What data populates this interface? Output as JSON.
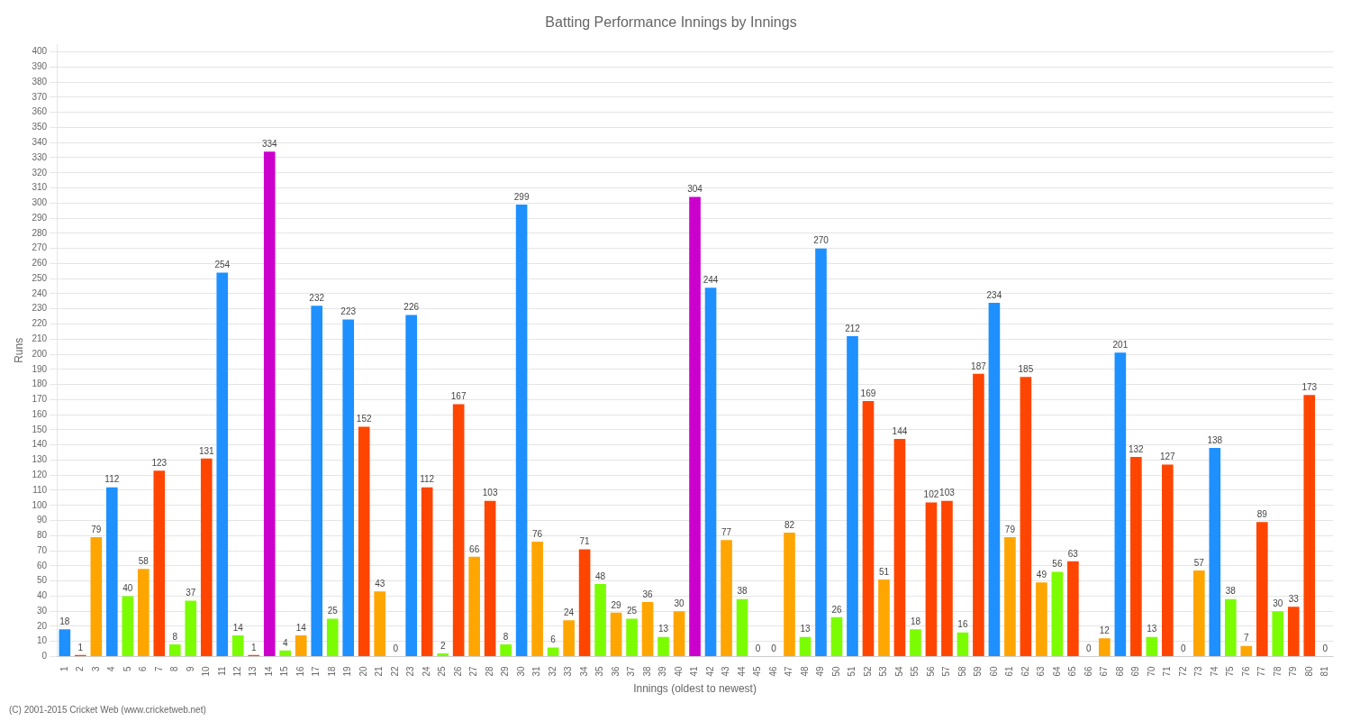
{
  "chart_data": {
    "type": "bar",
    "title": "Batting Performance Innings by Innings",
    "xlabel": "Innings (oldest to newest)",
    "ylabel": "Runs",
    "annotations": [
      "(C) 2001-2015 Cricket Web (www.cricketweb.net)"
    ],
    "categories": [
      "1",
      "2",
      "3",
      "4",
      "5",
      "6",
      "7",
      "8",
      "9",
      "10",
      "11",
      "12",
      "13",
      "14",
      "15",
      "16",
      "17",
      "18",
      "19",
      "20",
      "21",
      "22",
      "23",
      "24",
      "25",
      "26",
      "27",
      "28",
      "29",
      "30",
      "31",
      "32",
      "33",
      "34",
      "35",
      "36",
      "37",
      "38",
      "39",
      "40",
      "41",
      "42",
      "43",
      "44",
      "45",
      "46",
      "47",
      "48",
      "49",
      "50",
      "51",
      "52",
      "53",
      "54",
      "55",
      "56",
      "57",
      "58",
      "59",
      "60",
      "61",
      "62",
      "63",
      "64",
      "65",
      "66",
      "67",
      "68",
      "69",
      "70",
      "71",
      "72",
      "73",
      "74",
      "75",
      "76",
      "77",
      "78",
      "79",
      "80",
      "81"
    ],
    "values": [
      18,
      1,
      79,
      112,
      40,
      58,
      123,
      8,
      37,
      131,
      254,
      14,
      1,
      334,
      4,
      14,
      232,
      25,
      223,
      152,
      43,
      0,
      226,
      112,
      2,
      167,
      66,
      103,
      8,
      299,
      76,
      6,
      24,
      71,
      48,
      29,
      25,
      36,
      13,
      30,
      304,
      244,
      77,
      38,
      0,
      0,
      82,
      13,
      270,
      26,
      212,
      169,
      51,
      144,
      18,
      102,
      103,
      16,
      187,
      234,
      79,
      185,
      49,
      56,
      63,
      0,
      12,
      201,
      132,
      13,
      127,
      0,
      57,
      138,
      38,
      7,
      89,
      30,
      33,
      173,
      0
    ],
    "colors": [
      "#1e90ff",
      "#ff4500",
      "#ffa500",
      "#1e90ff",
      "#7cfc00",
      "#ffa500",
      "#ff4500",
      "#7cfc00",
      "#7cfc00",
      "#ff4500",
      "#1e90ff",
      "#7cfc00",
      "#ff4500",
      "#cc00cc",
      "#7cfc00",
      "#ffa500",
      "#1e90ff",
      "#7cfc00",
      "#1e90ff",
      "#ff4500",
      "#ffa500",
      "#7cfc00",
      "#1e90ff",
      "#ff4500",
      "#7cfc00",
      "#ff4500",
      "#ffa500",
      "#ff4500",
      "#7cfc00",
      "#1e90ff",
      "#ffa500",
      "#7cfc00",
      "#ffa500",
      "#ff4500",
      "#7cfc00",
      "#ffa500",
      "#7cfc00",
      "#ffa500",
      "#7cfc00",
      "#ffa500",
      "#cc00cc",
      "#1e90ff",
      "#ffa500",
      "#7cfc00",
      "#ffa500",
      "#7cfc00",
      "#ffa500",
      "#7cfc00",
      "#1e90ff",
      "#7cfc00",
      "#1e90ff",
      "#ff4500",
      "#ffa500",
      "#ff4500",
      "#7cfc00",
      "#ff4500",
      "#ff4500",
      "#7cfc00",
      "#ff4500",
      "#1e90ff",
      "#ffa500",
      "#ff4500",
      "#ffa500",
      "#7cfc00",
      "#ff4500",
      "#7cfc00",
      "#ffa500",
      "#1e90ff",
      "#ff4500",
      "#7cfc00",
      "#ff4500",
      "#ffa500",
      "#ffa500",
      "#1e90ff",
      "#7cfc00",
      "#ffa500",
      "#ff4500",
      "#7cfc00",
      "#ff4500",
      "#ff4500",
      "#7cfc00"
    ],
    "ylim": [
      0,
      405
    ],
    "yticks": [
      0,
      10,
      20,
      30,
      40,
      50,
      60,
      70,
      80,
      90,
      100,
      110,
      120,
      130,
      140,
      150,
      160,
      170,
      180,
      190,
      200,
      210,
      220,
      230,
      240,
      250,
      260,
      270,
      280,
      290,
      300,
      310,
      320,
      330,
      340,
      350,
      360,
      370,
      380,
      390,
      400
    ],
    "grid": true,
    "data_labels": true
  }
}
